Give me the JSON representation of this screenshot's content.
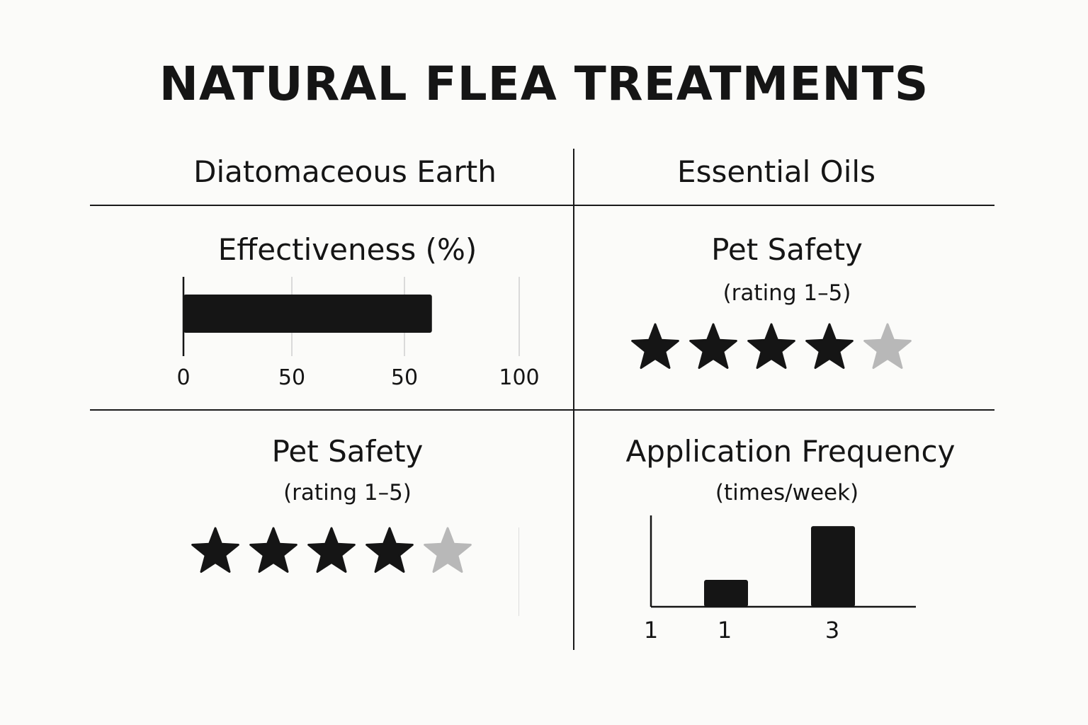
{
  "title": "NATURAL FLEA TREATMENTS",
  "columns": [
    "Diatomaceous Earth",
    "Essential Oils"
  ],
  "colors": {
    "filled": "#151515",
    "empty": "#b8b8b8",
    "grid": "#cfcfcf",
    "ink": "#151515"
  },
  "panels": {
    "de_effectiveness": {
      "title": "Effectiveness (%)"
    },
    "eo_safety": {
      "title": "Pet Safety",
      "subtitle": "(rating 1–5)"
    },
    "de_safety": {
      "title": "Pet Safety",
      "subtitle": "(rating 1–5)"
    },
    "eo_frequency": {
      "title": "Application Frequency",
      "subtitle": "(times/week)"
    }
  },
  "chart_data": [
    {
      "type": "bar",
      "orientation": "horizontal",
      "title": "Effectiveness (%)",
      "values": [
        74
      ],
      "xlim": [
        0,
        100
      ],
      "tick_labels": [
        "0",
        "50",
        "50",
        "100"
      ],
      "grid": true
    },
    {
      "type": "rating",
      "title": "Pet Safety",
      "subtitle": "(rating 1–5)",
      "value": 4,
      "max": 5
    },
    {
      "type": "rating",
      "title": "Pet Safety",
      "subtitle": "(rating 1–5)",
      "value": 4,
      "max": 5
    },
    {
      "type": "bar",
      "title": "Application Frequency",
      "subtitle": "(times/week)",
      "values": [
        1,
        3
      ],
      "ylim": [
        0,
        3.4
      ],
      "tick_labels": [
        "1",
        "1",
        "3"
      ],
      "grid": false
    }
  ]
}
